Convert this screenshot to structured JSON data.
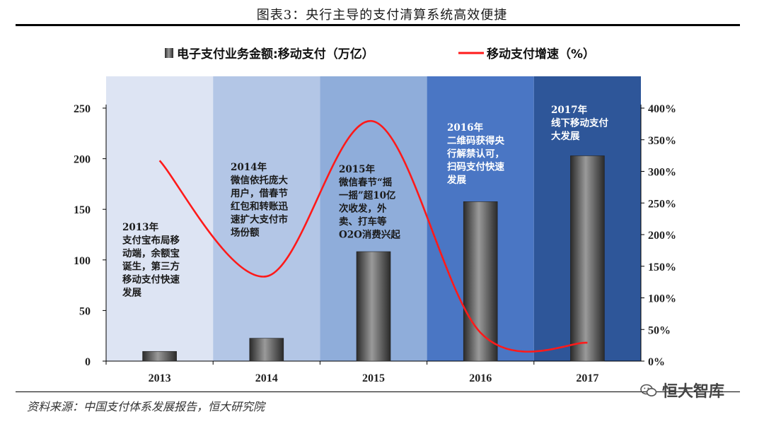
{
  "header": {
    "title": "图表3：央行主导的支付清算系统高效便捷"
  },
  "footer": {
    "source": "资料来源：中国支付体系发展报告，恒大研究院",
    "watermark": "恒大智库"
  },
  "colors": {
    "panel_bg": [
      "#dde4f3",
      "#b3c6e6",
      "#8fadda",
      "#4a76c4",
      "#2e5699"
    ],
    "annotation_text": [
      "#1a1a1a",
      "#1a1a1a",
      "#1a1a1a",
      "#ffffff",
      "#ffffff"
    ],
    "line": "#ff1a1a",
    "bar": "#4d4d4d"
  },
  "chart_data": {
    "type": "bar",
    "categories": [
      "2013",
      "2014",
      "2015",
      "2016",
      "2017"
    ],
    "series": [
      {
        "name": "电子支付业务金额:移动支付（万亿）",
        "type": "bar",
        "axis": "left",
        "values": [
          9.6,
          22.6,
          108.2,
          157.6,
          202.9
        ]
      },
      {
        "name": "移动支付增速（%）",
        "type": "line",
        "axis": "right",
        "values": [
          317,
          134,
          379,
          45,
          29
        ]
      }
    ],
    "y_left": {
      "min": 0,
      "max": 250,
      "ticks": [
        "0",
        "50",
        "100",
        "150",
        "200",
        "250"
      ]
    },
    "y_right": {
      "min": 0,
      "max": 400,
      "ticks": [
        "0%",
        "50%",
        "100%",
        "150%",
        "200%",
        "250%",
        "300%",
        "350%",
        "400%"
      ]
    },
    "legend": {
      "position": "top"
    },
    "annotations": [
      [
        "2013年",
        "支付宝布局移",
        "动端，余额宝",
        "诞生，第三方",
        "移动支付快速",
        "发展"
      ],
      [
        "2014年",
        "微信依托庞大",
        "用户，借春节",
        "红包和转账迅",
        "速扩大支付市",
        "场份额"
      ],
      [
        "2015年",
        "微信春节“摇",
        "一摇”超10亿",
        "次收发，外",
        "卖、打车等",
        "O2O消费兴起"
      ],
      [
        "2016年",
        "二维码获得央",
        "行解禁认可，",
        "扫码支付快速",
        "发展"
      ],
      [
        "2017年",
        "线下移动支付",
        "大发展"
      ]
    ]
  }
}
